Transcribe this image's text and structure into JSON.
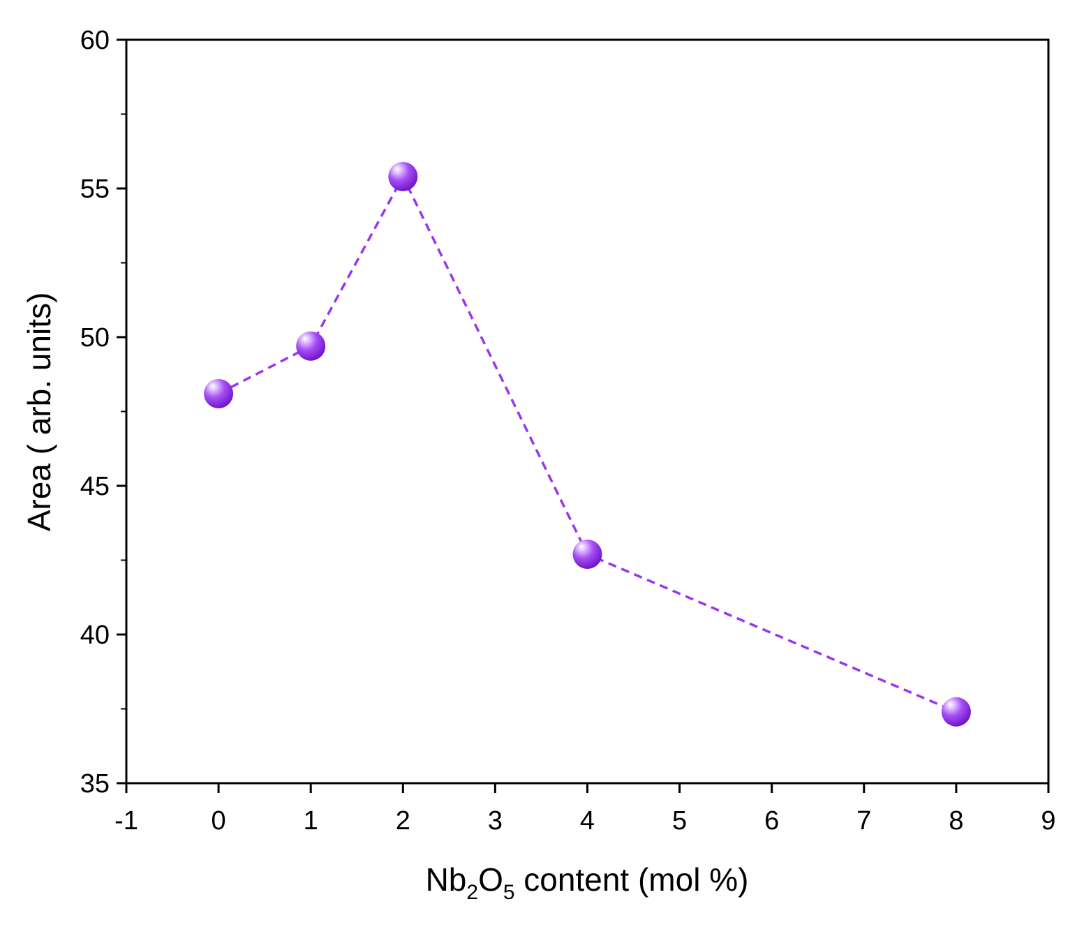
{
  "chart_data": {
    "type": "line",
    "xlabel": {
      "main": "Nb",
      "sub1": "2",
      "mid": "O",
      "sub2": "5",
      "rest": " content (mol %)"
    },
    "ylabel": "Area ( arb. units)",
    "xlim": [
      -1,
      9
    ],
    "ylim": [
      35,
      60
    ],
    "xticks": [
      -1,
      0,
      1,
      2,
      3,
      4,
      5,
      6,
      7,
      8,
      9
    ],
    "xtick_labels": [
      "-1",
      "0",
      "1",
      "2",
      "3",
      "4",
      "5",
      "6",
      "7",
      "8",
      "9"
    ],
    "yticks": [
      35,
      40,
      45,
      50,
      55,
      60
    ],
    "ytick_labels": [
      "35",
      "40",
      "45",
      "50",
      "55",
      "60"
    ],
    "yminor": [
      37.5,
      42.5,
      47.5,
      52.5,
      57.5
    ],
    "grid": false,
    "series": [
      {
        "x": [
          0,
          1,
          2,
          4,
          8
        ],
        "y": [
          48.1,
          49.7,
          55.4,
          42.7,
          37.4
        ],
        "line_style": "dashed",
        "marker": "sphere",
        "color": "#9a35f0"
      }
    ]
  }
}
